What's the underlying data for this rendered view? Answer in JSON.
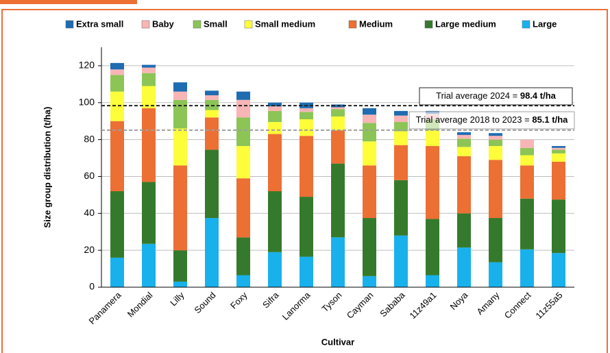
{
  "chart_data": {
    "type": "stacked_bar",
    "y_label": "Size group distribution (t/ha)",
    "x_label": "Cultivar",
    "categories": [
      "Panamera",
      "Mondial",
      "Lilly",
      "Sound",
      "Foxy",
      "Sifra",
      "Lanorma",
      "Tyson",
      "Cayman",
      "Sababa",
      "11z49a1",
      "Noya",
      "Amany",
      "Connect",
      "11z55a5"
    ],
    "series": [
      {
        "name": "Large",
        "color": "#19b1ec",
        "values": [
          16,
          23.5,
          3,
          37.5,
          6.5,
          19,
          16.5,
          27,
          6,
          28,
          6.5,
          21.5,
          13.5,
          20.5,
          18.5
        ]
      },
      {
        "name": "Large medium",
        "color": "#357a2c",
        "values": [
          36,
          33.5,
          17,
          37,
          20.5,
          33,
          32.5,
          40,
          31.5,
          30,
          30.5,
          18.5,
          24,
          27.5,
          29
        ]
      },
      {
        "name": "Medium",
        "color": "#ec6f34",
        "values": [
          38,
          40,
          46,
          17.5,
          32,
          31,
          33,
          18,
          28.5,
          19,
          39.5,
          31,
          31.5,
          18,
          20.5
        ]
      },
      {
        "name": "Small medium",
        "color": "#fdfd3a",
        "values": [
          16,
          12,
          20,
          4,
          17.5,
          6.5,
          9,
          7.5,
          13,
          7.5,
          8.5,
          5,
          7.5,
          5.5,
          4.5
        ]
      },
      {
        "name": "Small",
        "color": "#8cc456",
        "values": [
          9,
          7,
          15.5,
          5.5,
          15.5,
          6,
          4,
          4,
          10,
          5,
          6,
          4.5,
          3.5,
          4,
          2
        ]
      },
      {
        "name": "Baby",
        "color": "#f8b5b5",
        "values": [
          3,
          3,
          4.5,
          2.5,
          9.5,
          2.5,
          2,
          1,
          4.5,
          3.5,
          3,
          2,
          2,
          4.5,
          1
        ]
      },
      {
        "name": "Extra small",
        "color": "#1f6cb2",
        "values": [
          3.5,
          1.5,
          5,
          2.5,
          4.5,
          2,
          3,
          1.5,
          3.5,
          2.5,
          1.5,
          1.5,
          1.5,
          0,
          1
        ]
      }
    ],
    "ylim": [
      0,
      130
    ],
    "yticks": [
      0,
      20,
      40,
      60,
      80,
      100,
      120
    ],
    "grid": true,
    "reference_lines": [
      {
        "label": "Trial average 2024 =",
        "value_label": "98.4 t/ha",
        "value": 98.4,
        "color": "#222222"
      },
      {
        "label": "Trial average 2018 to 2023 =",
        "value_label": "85.1 t/ha",
        "value": 85.1,
        "color": "#9e9e9e"
      }
    ]
  }
}
